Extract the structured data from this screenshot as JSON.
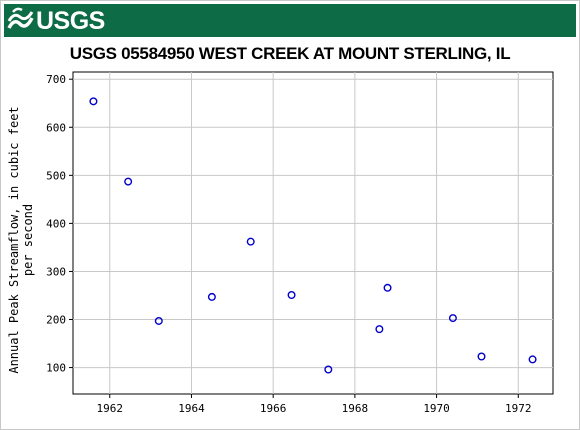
{
  "header": {
    "logo_text": "USGS",
    "brand_color": "#0d6b46"
  },
  "chart_data": {
    "type": "scatter",
    "title": "USGS 05584950 WEST CREEK AT MOUNT STERLING, IL",
    "ylabel_lines": [
      "Annual Peak Streamflow, in cubic feet",
      "per second"
    ],
    "xlabel": "",
    "xlim": [
      1961.1,
      1972.85
    ],
    "ylim": [
      45,
      715
    ],
    "x_ticks": [
      1962,
      1964,
      1966,
      1968,
      1970,
      1972
    ],
    "y_ticks": [
      100,
      200,
      300,
      400,
      500,
      600,
      700
    ],
    "grid": true,
    "marker_color": "#0000cc",
    "points": [
      {
        "x": 1961.6,
        "y": 654
      },
      {
        "x": 1962.45,
        "y": 487
      },
      {
        "x": 1963.2,
        "y": 197
      },
      {
        "x": 1964.5,
        "y": 247
      },
      {
        "x": 1965.45,
        "y": 362
      },
      {
        "x": 1966.45,
        "y": 251
      },
      {
        "x": 1967.35,
        "y": 96
      },
      {
        "x": 1968.6,
        "y": 180
      },
      {
        "x": 1968.8,
        "y": 266
      },
      {
        "x": 1970.4,
        "y": 203
      },
      {
        "x": 1971.1,
        "y": 123
      },
      {
        "x": 1972.35,
        "y": 117
      }
    ]
  }
}
